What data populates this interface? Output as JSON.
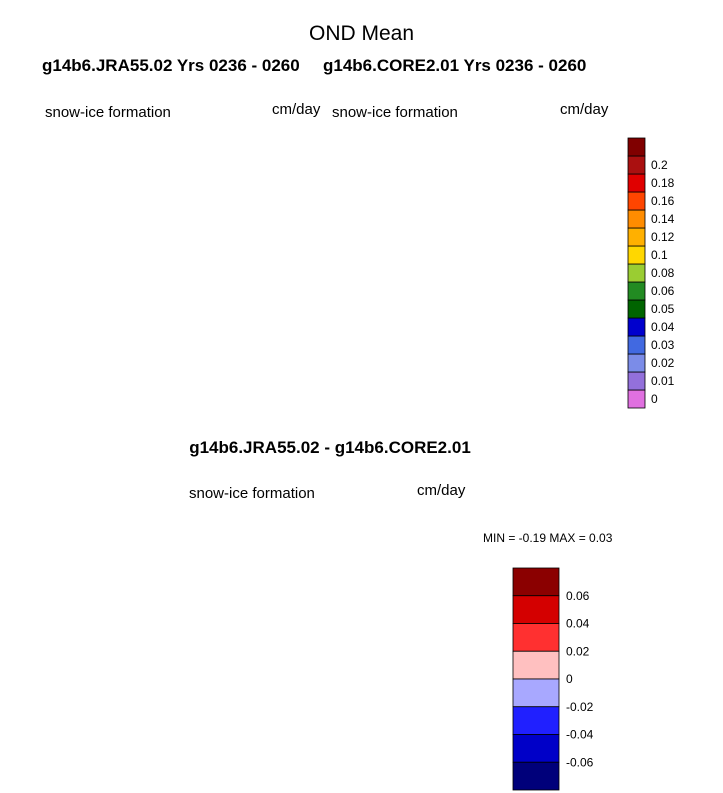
{
  "title": "OND Mean",
  "subtitle_left": "g14b6.JRA55.02  Yrs 0236 - 0260",
  "subtitle_right": "g14b6.CORE2.01  Yrs 0236 - 0260",
  "difference_title": "g14b6.JRA55.02 - g14b6.CORE2.01",
  "panels": [
    {
      "variable": "snow-ice formation",
      "units": "cm/day"
    },
    {
      "variable": "snow-ice formation",
      "units": "cm/day"
    },
    {
      "variable": "snow-ice formation",
      "units": "cm/day"
    }
  ],
  "diff_stats": "MIN =  -0.19 MAX =   0.03",
  "chart_data": [
    {
      "type": "heatmap",
      "projection": "south polar stereographic",
      "title": "g14b6.JRA55.02  Yrs 0236 - 0260",
      "variable": "snow-ice formation",
      "units": "cm/day",
      "colorbar": {
        "levels": [
          "0",
          "0.01",
          "0.02",
          "0.03",
          "0.04",
          "0.05",
          "0.06",
          "0.08",
          "0.1",
          "0.12",
          "0.14",
          "0.16",
          "0.18",
          "0.2"
        ],
        "colors": [
          "#e070e0",
          "#9370db",
          "#7b8ce8",
          "#4169e1",
          "#0000cd",
          "#006400",
          "#228b22",
          "#9acd32",
          "#ffd700",
          "#ffb000",
          "#ff8c00",
          "#ff4500",
          "#e00000",
          "#aa1010",
          "#800000"
        ]
      }
    },
    {
      "type": "heatmap",
      "projection": "south polar stereographic",
      "title": "g14b6.CORE2.01  Yrs 0236 - 0260",
      "variable": "snow-ice formation",
      "units": "cm/day",
      "colorbar": {
        "levels": [
          "0",
          "0.01",
          "0.02",
          "0.03",
          "0.04",
          "0.05",
          "0.06",
          "0.08",
          "0.1",
          "0.12",
          "0.14",
          "0.16",
          "0.18",
          "0.2"
        ],
        "colors": [
          "#e070e0",
          "#9370db",
          "#7b8ce8",
          "#4169e1",
          "#0000cd",
          "#006400",
          "#228b22",
          "#9acd32",
          "#ffd700",
          "#ffb000",
          "#ff8c00",
          "#ff4500",
          "#e00000",
          "#aa1010",
          "#800000"
        ]
      }
    },
    {
      "type": "heatmap",
      "projection": "south polar stereographic",
      "title": "g14b6.JRA55.02 - g14b6.CORE2.01",
      "variable": "snow-ice formation",
      "units": "cm/day",
      "min": -0.19,
      "max": 0.03,
      "colorbar": {
        "levels": [
          "0.06",
          "0.04",
          "0.02",
          "0",
          "-0.02",
          "-0.04",
          "-0.06"
        ],
        "colors": [
          "#8b0000",
          "#d40000",
          "#ff3030",
          "#ffc0c0",
          "#a8a8ff",
          "#2020ff",
          "#0000c8",
          "#00007a"
        ]
      }
    }
  ]
}
